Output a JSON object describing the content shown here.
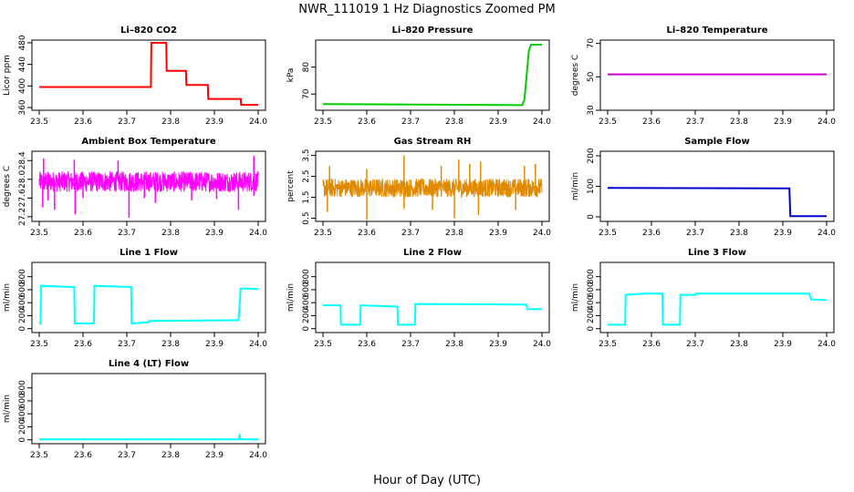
{
  "figure": {
    "title": "NWR_111019  1 Hz Diagnostics Zoomed PM",
    "xlabel": "Hour of Day (UTC)"
  },
  "chart_data": [
    {
      "type": "line",
      "title": "Li–820 CO2",
      "ylabel": "Licor ppm",
      "xlim": [
        23.5,
        24.0
      ],
      "ylim": [
        355,
        485
      ],
      "yticks": [
        "360",
        "400",
        "440",
        "480"
      ],
      "xticks": [
        "23.5",
        "23.6",
        "23.7",
        "23.8",
        "23.9",
        "24.0"
      ],
      "color": "#ff0000",
      "series": [
        {
          "x": [
            23.5,
            23.755,
            23.756,
            23.79,
            23.791,
            23.835,
            23.836,
            23.885,
            23.886,
            23.96,
            23.961,
            24.0
          ],
          "y": [
            398,
            398,
            480,
            480,
            428,
            428,
            402,
            402,
            376,
            376,
            365,
            365
          ]
        }
      ]
    },
    {
      "type": "line",
      "title": "Li–820 Pressure",
      "ylabel": "kPa",
      "xlim": [
        23.5,
        24.0
      ],
      "ylim": [
        64,
        90
      ],
      "yticks": [
        "70",
        "80"
      ],
      "xticks": [
        "23.5",
        "23.6",
        "23.7",
        "23.8",
        "23.9",
        "24.0"
      ],
      "color": "#00cc00",
      "series": [
        {
          "x": [
            23.5,
            23.955,
            23.96,
            23.97,
            23.975,
            24.0
          ],
          "y": [
            66.3,
            65.9,
            68,
            86,
            88.3,
            88.3
          ]
        }
      ]
    },
    {
      "type": "line",
      "title": "Li–820 Temperature",
      "ylabel": "degrees C",
      "xlim": [
        23.5,
        24.0
      ],
      "ylim": [
        30,
        72
      ],
      "yticks": [
        "30",
        "50",
        "70"
      ],
      "xticks": [
        "23.5",
        "23.6",
        "23.7",
        "23.8",
        "23.9",
        "24.0"
      ],
      "color": "#d000d0",
      "series": [
        {
          "x": [
            23.5,
            24.0
          ],
          "y": [
            51.5,
            51.5
          ]
        }
      ]
    },
    {
      "type": "line",
      "title": "Ambient Box Temperature",
      "ylabel": "degrees C",
      "xlim": [
        23.5,
        24.0
      ],
      "ylim": [
        27.1,
        28.6
      ],
      "yticks": [
        "27.2",
        "27.6",
        "28.0",
        "28.4"
      ],
      "xticks": [
        "23.5",
        "23.6",
        "23.7",
        "23.8",
        "23.9",
        "24.0"
      ],
      "color": "#ff00ff",
      "series": [
        {
          "level": 27.95,
          "noise": 0.22,
          "spikes_low": [
            [
              23.508,
              27.4
            ],
            [
              23.52,
              27.55
            ],
            [
              23.535,
              27.35
            ],
            [
              23.582,
              27.25
            ],
            [
              23.6,
              27.6
            ],
            [
              23.705,
              27.18
            ],
            [
              23.74,
              27.6
            ],
            [
              23.765,
              27.5
            ],
            [
              23.848,
              27.55
            ],
            [
              23.905,
              27.58
            ],
            [
              23.955,
              27.35
            ],
            [
              23.99,
              27.65
            ]
          ],
          "spikes_high": [
            [
              23.51,
              28.45
            ],
            [
              23.58,
              28.42
            ],
            [
              23.68,
              28.4
            ],
            [
              23.99,
              28.5
            ]
          ]
        }
      ]
    },
    {
      "type": "line",
      "title": "Gas Stream RH",
      "ylabel": "percent",
      "xlim": [
        23.5,
        24.0
      ],
      "ylim": [
        0.35,
        3.7
      ],
      "yticks": [
        "0.5",
        "1.5",
        "2.5",
        "3.5"
      ],
      "xticks": [
        "23.5",
        "23.6",
        "23.7",
        "23.8",
        "23.9",
        "24.0"
      ],
      "color": "#e08a00",
      "series": [
        {
          "level": 1.95,
          "noise": 0.45,
          "spikes_low": [
            [
              23.51,
              0.8
            ],
            [
              23.6,
              0.42
            ],
            [
              23.685,
              0.95
            ],
            [
              23.75,
              0.9
            ],
            [
              23.8,
              0.5
            ],
            [
              23.855,
              0.65
            ],
            [
              23.94,
              0.9
            ]
          ],
          "spikes_high": [
            [
              23.515,
              3.0
            ],
            [
              23.6,
              2.85
            ],
            [
              23.685,
              3.5
            ],
            [
              23.77,
              3.0
            ],
            [
              23.81,
              3.3
            ],
            [
              23.835,
              3.1
            ],
            [
              23.86,
              3.2
            ],
            [
              23.96,
              3.0
            ],
            [
              23.985,
              3.1
            ]
          ]
        }
      ]
    },
    {
      "type": "line",
      "title": "Sample Flow",
      "ylabel": "ml/min",
      "xlim": [
        23.5,
        24.0
      ],
      "ylim": [
        -15,
        215
      ],
      "yticks": [
        "0",
        "100",
        "200"
      ],
      "xticks": [
        "23.5",
        "23.6",
        "23.7",
        "23.8",
        "23.9",
        "24.0"
      ],
      "color": "#0000cc",
      "series": [
        {
          "x": [
            23.5,
            23.915,
            23.917,
            24.0
          ],
          "y": [
            95,
            93,
            2,
            2
          ]
        }
      ]
    },
    {
      "type": "line",
      "title": "Line 1 Flow",
      "ylabel": "ml/min",
      "xlim": [
        23.5,
        24.0
      ],
      "ylim": [
        -60,
        1020
      ],
      "yticks": [
        "0",
        "200",
        "400",
        "600",
        "800"
      ],
      "xticks": [
        "23.5",
        "23.6",
        "23.7",
        "23.8",
        "23.9",
        "24.0"
      ],
      "color": "#00ffff",
      "series": [
        {
          "x": [
            23.5,
            23.503,
            23.504,
            23.58,
            23.581,
            23.625,
            23.626,
            23.71,
            23.711,
            23.75,
            23.751,
            23.955,
            23.96,
            24.0
          ],
          "y": [
            80,
            80,
            660,
            640,
            80,
            80,
            660,
            640,
            80,
            100,
            120,
            130,
            620,
            610
          ]
        }
      ]
    },
    {
      "type": "line",
      "title": "Line 2 Flow",
      "ylabel": "ml/min",
      "xlim": [
        23.5,
        24.0
      ],
      "ylim": [
        -60,
        1020
      ],
      "yticks": [
        "0",
        "200",
        "400",
        "600",
        "800"
      ],
      "xticks": [
        "23.5",
        "23.6",
        "23.7",
        "23.8",
        "23.9",
        "24.0"
      ],
      "color": "#00ffff",
      "series": [
        {
          "x": [
            23.5,
            23.54,
            23.541,
            23.585,
            23.586,
            23.67,
            23.671,
            23.71,
            23.711,
            23.965,
            23.966,
            24.0
          ],
          "y": [
            360,
            360,
            60,
            60,
            360,
            340,
            60,
            60,
            380,
            370,
            300,
            300
          ]
        }
      ]
    },
    {
      "type": "line",
      "title": "Line 3 Flow",
      "ylabel": "ml/min",
      "xlim": [
        23.5,
        24.0
      ],
      "ylim": [
        -60,
        1020
      ],
      "yticks": [
        "0",
        "200",
        "400",
        "600",
        "800"
      ],
      "xticks": [
        "23.5",
        "23.6",
        "23.7",
        "23.8",
        "23.9",
        "24.0"
      ],
      "color": "#00ffff",
      "series": [
        {
          "x": [
            23.5,
            23.503,
            23.504,
            23.54,
            23.541,
            23.585,
            23.586,
            23.625,
            23.626,
            23.665,
            23.666,
            23.7,
            23.701,
            23.96,
            23.965,
            24.0
          ],
          "y": [
            60,
            60,
            60,
            60,
            520,
            540,
            540,
            540,
            60,
            60,
            520,
            520,
            540,
            540,
            450,
            440
          ]
        }
      ]
    },
    {
      "type": "line",
      "title": "Line 4 (LT) Flow",
      "ylabel": "ml/min",
      "xlim": [
        23.5,
        24.0
      ],
      "ylim": [
        -60,
        1020
      ],
      "yticks": [
        "0",
        "200",
        "400",
        "600",
        "800"
      ],
      "xticks": [
        "23.5",
        "23.6",
        "23.7",
        "23.8",
        "23.9",
        "24.0"
      ],
      "color": "#00ffff",
      "series": [
        {
          "x": [
            23.5,
            23.955,
            23.957,
            23.96,
            24.0
          ],
          "y": [
            8,
            8,
            60,
            8,
            8
          ]
        }
      ]
    }
  ]
}
